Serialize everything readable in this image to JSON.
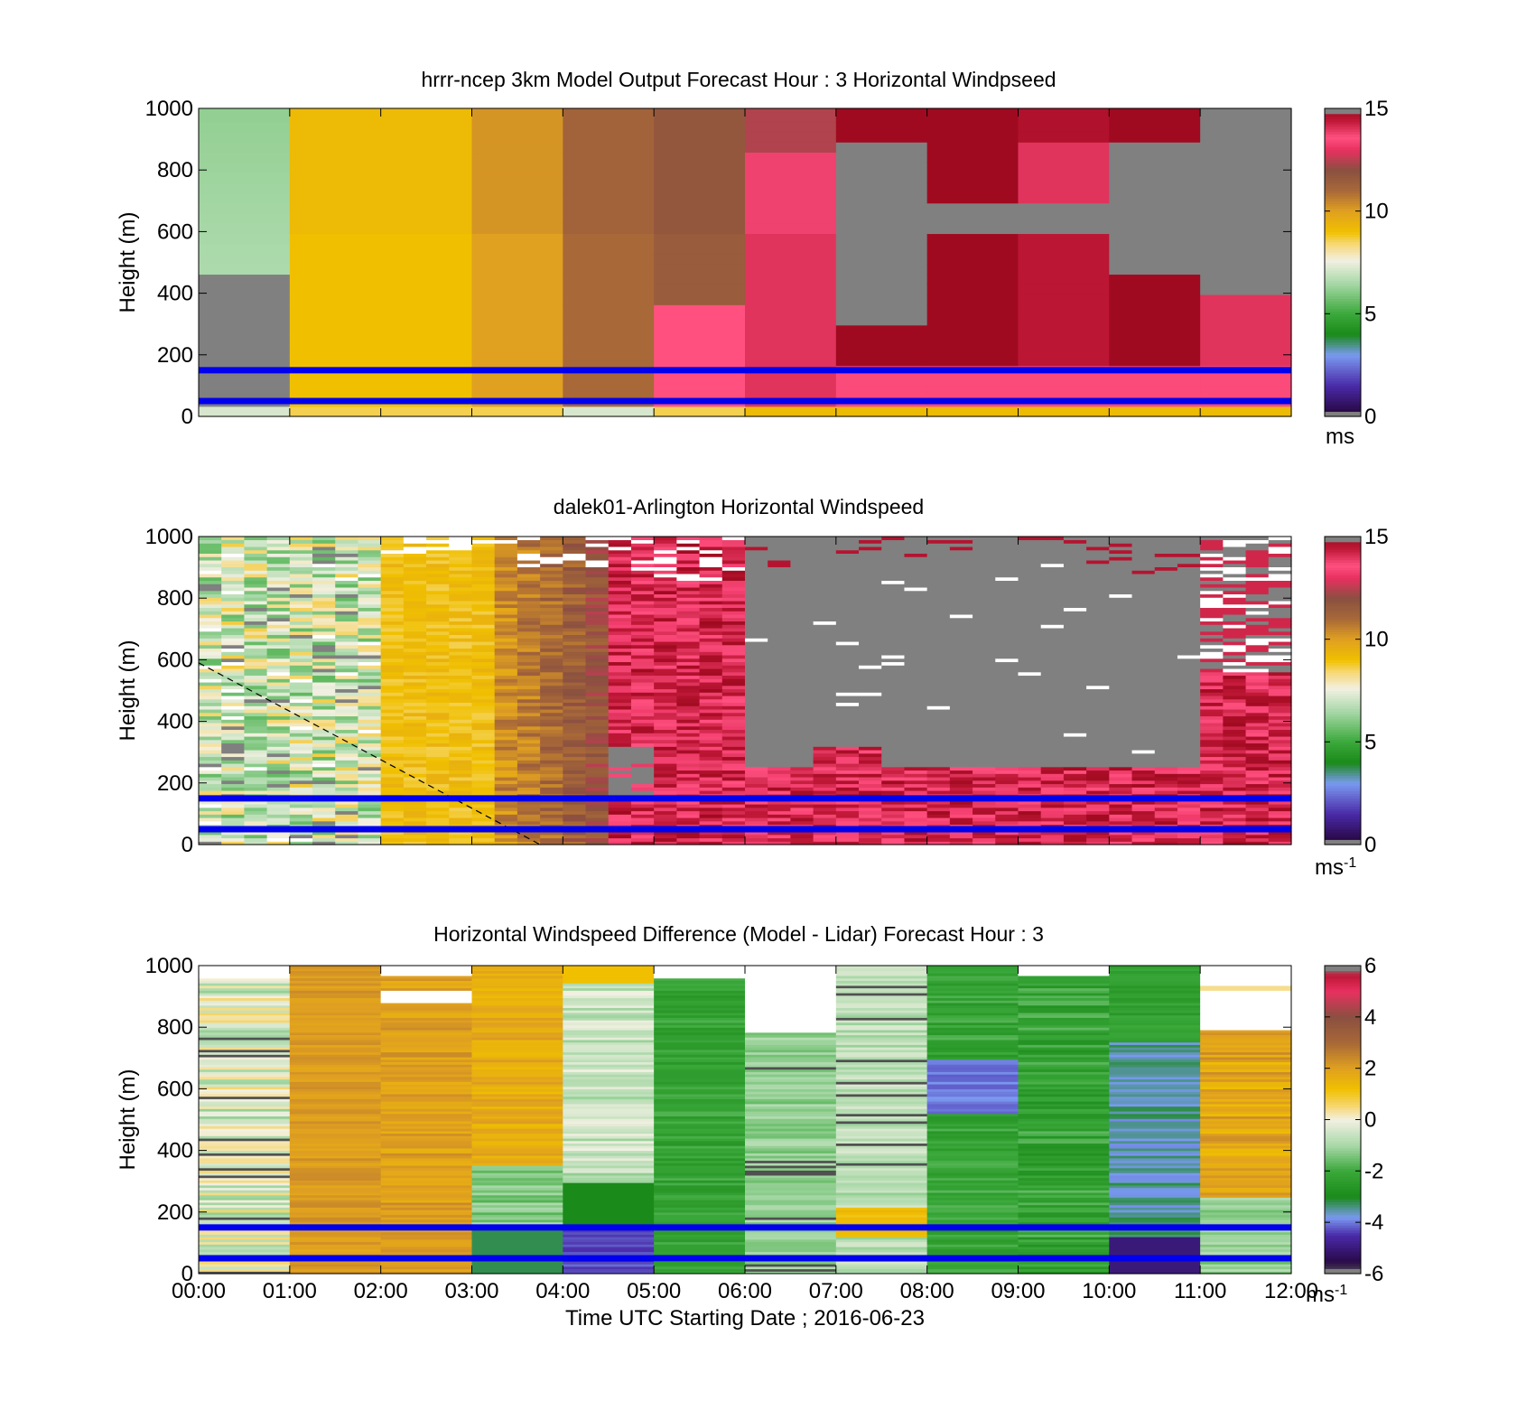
{
  "colors": {
    "speed_colormap": [
      "#1a1a1a",
      "#2a0a4a",
      "#4a2aa8",
      "#7a9af0",
      "#1a8a1a",
      "#3aa83a",
      "#a8d8a8",
      "#f2f0e2",
      "#f6d878",
      "#f0c000",
      "#e0a020",
      "#a86838",
      "#8a5040",
      "#e83060",
      "#ff5080",
      "#c01838",
      "#a00a20",
      "#808080"
    ],
    "diff_colormap": [
      "#505050",
      "#2a0a4a",
      "#4a2aa8",
      "#7a9af0",
      "#1a8a1a",
      "#3aa83a",
      "#a8d8a8",
      "#f2f0e2",
      "#f6d878",
      "#f0c000",
      "#e0a020",
      "#a86838",
      "#8a5040",
      "#e83060",
      "#c01838",
      "#808080"
    ],
    "reference_line": "#0000ee",
    "missing": "#808080"
  },
  "x_axis": {
    "tick_labels": [
      "00:00",
      "01:00",
      "02:00",
      "03:00",
      "04:00",
      "05:00",
      "06:00",
      "07:00",
      "08:00",
      "09:00",
      "10:00",
      "11:00",
      "12:00"
    ],
    "label": "Time UTC  Starting Date ; 2016-06-23"
  },
  "y_axis": {
    "label": "Height (m)",
    "tick_labels": [
      "0",
      "200",
      "400",
      "600",
      "800",
      "1000"
    ]
  },
  "chart_data": [
    {
      "type": "heatmap",
      "title": "hrrr-ncep 3km Model Output   Forecast Hour : 3 Horizontal Windpseed",
      "ylabel": "Height (m)",
      "xlim": [
        "00:00",
        "12:00"
      ],
      "ylim": [
        0,
        1000
      ],
      "reference_heights_m": [
        150,
        50
      ],
      "colorbar": {
        "range": [
          0,
          15
        ],
        "tick_labels": [
          "0",
          "5",
          "10",
          "15"
        ],
        "unit_label": "ms",
        "unit_superscript": ""
      },
      "hour_columns": [
        "00:00-01:00: ~6-7 m/s (light green) above 450 m, missing 50-450 m",
        "01:00-02:00: ~9 m/s (yellow)",
        "02:00-03:00: ~9 m/s (yellow)",
        "03:00-04:00: ~10 m/s (orange)",
        "04:00-05:00: ~11 m/s (brown)",
        "05:00-06:00: ~11-12 m/s, ~13 m/s below 350 m",
        "06:00-07:00: ~14 m/s (pink/red)",
        "07:00-08:00: ~15 m/s at top and 50-300 m, missing 300-900 m",
        "08:00-09:00: ~15 m/s, missing 600-700 m",
        "09:00-10:00: ~14-15 m/s, missing 600-700 m",
        "10:00-11:00: ~15 m/s at top, missing 450-900 m",
        "11:00-12:00: missing above 400 m, ~14 m/s below"
      ]
    },
    {
      "type": "heatmap",
      "title": "dalek01-Arlington  Horizontal Windspeed",
      "ylabel": "Height (m)",
      "xlim": [
        "00:00",
        "12:00"
      ],
      "ylim": [
        0,
        1000
      ],
      "reference_heights_m": [
        150,
        50
      ],
      "colorbar": {
        "range": [
          0,
          15
        ],
        "tick_labels": [
          "0",
          "5",
          "10",
          "15"
        ],
        "unit_label": "ms",
        "unit_superscript": "-1"
      },
      "hour_columns": [
        "00:00-02:00: ~5-8 m/s (pale green/cream/yellow)",
        "02:00-03:30: ~9 m/s (yellow)",
        "03:30-04:30: ~10-11 m/s (orange/brown)",
        "04:30-06:00: ~13-15 m/s (pink/red)",
        "06:00-11:00: missing (gray) above ~250 m, ~14-15 m/s near surface",
        "11:00-12:00: ~14 m/s below 500 m"
      ],
      "dashed_line": {
        "from": [
          "00:00",
          590
        ],
        "to": [
          "03:45",
          0
        ]
      }
    },
    {
      "type": "heatmap",
      "title": "Horizontal Windspeed Difference (Model - Lidar) Forecast Hour : 3",
      "ylabel": "Height (m)",
      "xlabel": "Time UTC  Starting Date ; 2016-06-23",
      "xlim": [
        "00:00",
        "12:00"
      ],
      "ylim": [
        0,
        1000
      ],
      "reference_heights_m": [
        150,
        50
      ],
      "colorbar": {
        "range": [
          -6,
          6
        ],
        "tick_labels": [
          "-6",
          "-4",
          "-2",
          "0",
          "2",
          "4",
          "6"
        ],
        "unit_label": "ms",
        "unit_superscript": "-1"
      },
      "hour_columns": [
        "00:00-01:00: ~-1 to 0 m/s",
        "01:00-02:00: ~+2 m/s",
        "02:00-03:00: ~+1.5 to +2 m/s",
        "03:00-04:00: ~+1.5 to +2 m/s",
        "04:00-05:00: ~-1 to 0 m/s, -3 to -4 m/s near surface",
        "05:00-06:00: ~-2 to -3 m/s",
        "06:00-07:00: ~-1 to -2 m/s",
        "07:00-08:00: ~-1 m/s, +1 m/s near 150 m",
        "08:00-09:00: ~-2 to -3 m/s, ~-4 m/s near 600 m",
        "09:00-10:00: ~-2 to -3 m/s",
        "10:00-11:00: ~-3 to -4 m/s",
        "11:00-12:00: ~+1 to +2 m/s"
      ]
    }
  ]
}
